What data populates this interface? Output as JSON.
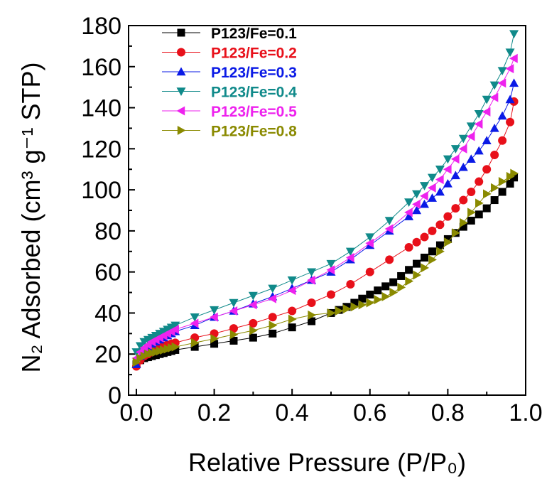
{
  "chart_data": {
    "type": "scatter",
    "xlabel": "Relative Pressure (P/P₀)",
    "ylabel": "N₂ Adsorbed (cm³ g⁻¹ STP)",
    "xlim": [
      -0.02,
      1.0
    ],
    "ylim": [
      0,
      180
    ],
    "x_ticks": [
      0.0,
      0.2,
      0.4,
      0.6,
      0.8,
      1.0
    ],
    "x_tick_labels": [
      "0.0",
      "0.2",
      "0.4",
      "0.6",
      "0.8",
      "1.0"
    ],
    "y_ticks": [
      0,
      20,
      40,
      60,
      80,
      100,
      120,
      140,
      160,
      180
    ],
    "y_tick_labels": [
      "0",
      "20",
      "40",
      "60",
      "80",
      "100",
      "120",
      "140",
      "160",
      "180"
    ],
    "grid": false,
    "legend_position": "top-left",
    "series": [
      {
        "name": "P123/Fe=0.1",
        "color": "#000000",
        "marker": "square",
        "x": [
          0.0,
          0.01,
          0.02,
          0.03,
          0.04,
          0.05,
          0.06,
          0.07,
          0.08,
          0.09,
          0.1,
          0.15,
          0.2,
          0.25,
          0.3,
          0.35,
          0.4,
          0.45,
          0.5,
          0.52,
          0.54,
          0.56,
          0.58,
          0.6,
          0.62,
          0.64,
          0.66,
          0.68,
          0.7,
          0.72,
          0.74,
          0.76,
          0.78,
          0.8,
          0.82,
          0.84,
          0.86,
          0.88,
          0.9,
          0.92,
          0.94,
          0.96,
          0.97
        ],
        "values": [
          15,
          17,
          18,
          18.5,
          19,
          19.5,
          20,
          20.5,
          21,
          21.5,
          22,
          23.5,
          25,
          26.5,
          28,
          30,
          33,
          36,
          40,
          41.5,
          43,
          45,
          47,
          49,
          51,
          53,
          55,
          58,
          61,
          64,
          67,
          70,
          73,
          76,
          79,
          82,
          85,
          88,
          91,
          95,
          99,
          103,
          106
        ]
      },
      {
        "name": "P123/Fe=0.2",
        "color": "#e8101a",
        "marker": "circle",
        "x": [
          0.0,
          0.01,
          0.02,
          0.03,
          0.04,
          0.05,
          0.06,
          0.07,
          0.08,
          0.09,
          0.1,
          0.15,
          0.2,
          0.25,
          0.3,
          0.35,
          0.4,
          0.45,
          0.5,
          0.55,
          0.6,
          0.65,
          0.7,
          0.72,
          0.74,
          0.76,
          0.78,
          0.8,
          0.82,
          0.84,
          0.86,
          0.88,
          0.9,
          0.92,
          0.94,
          0.96,
          0.97
        ],
        "values": [
          14,
          17,
          19,
          20,
          21,
          22,
          23,
          24,
          24.5,
          25,
          25.5,
          28,
          30,
          32.5,
          35,
          38,
          41,
          45,
          49,
          54,
          60,
          66,
          72,
          74.5,
          77,
          80,
          83,
          87,
          91,
          95,
          99,
          104,
          110,
          117,
          124,
          133,
          143
        ]
      },
      {
        "name": "P123/Fe=0.3",
        "color": "#0a1ae6",
        "marker": "triangle-up",
        "x": [
          0.0,
          0.01,
          0.02,
          0.03,
          0.04,
          0.05,
          0.06,
          0.07,
          0.08,
          0.09,
          0.1,
          0.15,
          0.2,
          0.25,
          0.3,
          0.35,
          0.4,
          0.45,
          0.5,
          0.55,
          0.6,
          0.65,
          0.7,
          0.72,
          0.74,
          0.76,
          0.78,
          0.8,
          0.82,
          0.84,
          0.86,
          0.88,
          0.9,
          0.92,
          0.94,
          0.96,
          0.97
        ],
        "values": [
          15,
          19,
          22,
          23.5,
          25,
          26,
          27,
          28,
          29,
          30,
          31,
          34,
          38,
          41,
          44.5,
          48,
          52,
          56,
          60,
          66,
          73,
          80,
          87,
          90,
          93,
          96,
          99,
          103,
          107,
          111,
          115,
          119,
          124,
          130,
          136,
          144,
          152
        ]
      },
      {
        "name": "P123/Fe=0.4",
        "color": "#108a8a",
        "marker": "triangle-down",
        "x": [
          0.0,
          0.01,
          0.02,
          0.03,
          0.04,
          0.05,
          0.06,
          0.07,
          0.08,
          0.09,
          0.1,
          0.15,
          0.2,
          0.25,
          0.3,
          0.35,
          0.4,
          0.45,
          0.5,
          0.55,
          0.6,
          0.65,
          0.7,
          0.72,
          0.74,
          0.76,
          0.78,
          0.8,
          0.82,
          0.84,
          0.86,
          0.88,
          0.9,
          0.92,
          0.94,
          0.96,
          0.97
        ],
        "values": [
          21,
          24,
          26,
          27,
          28,
          29,
          30,
          31,
          32,
          33,
          34,
          38,
          41.5,
          45,
          48.5,
          52,
          56,
          60,
          64,
          70,
          77,
          85,
          94,
          98,
          102,
          106,
          110,
          115,
          120,
          125,
          131,
          137,
          144,
          151,
          158,
          167,
          176
        ]
      },
      {
        "name": "P123/Fe=0.5",
        "color": "#ee22ee",
        "marker": "triangle-left",
        "x": [
          0.0,
          0.01,
          0.02,
          0.03,
          0.04,
          0.05,
          0.06,
          0.07,
          0.08,
          0.09,
          0.1,
          0.15,
          0.2,
          0.25,
          0.3,
          0.35,
          0.4,
          0.45,
          0.5,
          0.55,
          0.6,
          0.65,
          0.7,
          0.72,
          0.74,
          0.76,
          0.78,
          0.8,
          0.82,
          0.84,
          0.86,
          0.88,
          0.9,
          0.92,
          0.94,
          0.96,
          0.97
        ],
        "values": [
          18,
          21,
          23,
          24.5,
          26,
          27,
          28,
          29,
          30,
          31,
          32,
          35,
          38,
          41,
          44,
          47,
          51,
          56,
          61,
          67,
          74,
          81,
          89,
          93,
          97,
          101,
          105,
          110,
          115,
          120,
          126,
          132,
          138,
          145,
          152,
          159,
          164
        ]
      },
      {
        "name": "P123/Fe=0.8",
        "color": "#8a8a00",
        "marker": "triangle-right",
        "x": [
          0.0,
          0.01,
          0.02,
          0.03,
          0.04,
          0.05,
          0.06,
          0.07,
          0.08,
          0.09,
          0.1,
          0.15,
          0.2,
          0.25,
          0.3,
          0.35,
          0.4,
          0.45,
          0.5,
          0.52,
          0.54,
          0.56,
          0.58,
          0.6,
          0.62,
          0.64,
          0.66,
          0.68,
          0.7,
          0.72,
          0.74,
          0.76,
          0.78,
          0.8,
          0.82,
          0.84,
          0.86,
          0.88,
          0.9,
          0.92,
          0.94,
          0.96,
          0.97
        ],
        "values": [
          16,
          18,
          19,
          20,
          20.5,
          21,
          21.5,
          22,
          22.5,
          23,
          23.5,
          25.5,
          27.5,
          29.5,
          31.5,
          34,
          37,
          39,
          40,
          41,
          42,
          43,
          44,
          45,
          46.5,
          48,
          50,
          52.5,
          55.5,
          58.5,
          62,
          66,
          70,
          74.5,
          79,
          84,
          89,
          93.5,
          98,
          101,
          104,
          106.5,
          108
        ]
      }
    ]
  }
}
